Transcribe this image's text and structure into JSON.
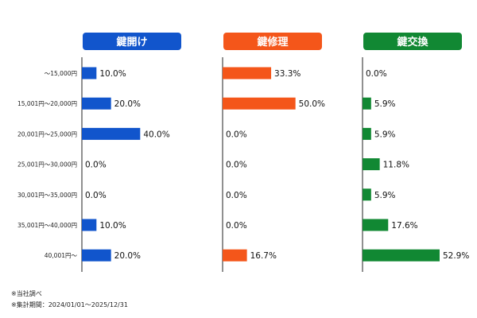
{
  "chart_data": {
    "type": "bar",
    "orientation": "horizontal",
    "categories": [
      "〜15,000円",
      "15,001円〜20,000円",
      "20,001円〜25,000円",
      "25,001円〜30,000円",
      "30,001円〜35,000円",
      "35,001円〜40,000円",
      "40,001円〜"
    ],
    "xlim": [
      0,
      60
    ],
    "grid": false,
    "legend": "none",
    "series": [
      {
        "name": "鍵開け",
        "color": "#1155cc",
        "values": [
          10.0,
          20.0,
          40.0,
          0.0,
          0.0,
          10.0,
          20.0
        ],
        "labels": [
          "10.0%",
          "20.0%",
          "40.0%",
          "0.0%",
          "0.0%",
          "10.0%",
          "20.0%"
        ]
      },
      {
        "name": "鍵修理",
        "color": "#f4561a",
        "values": [
          33.3,
          50.0,
          0.0,
          0.0,
          0.0,
          0.0,
          16.7
        ],
        "labels": [
          "33.3%",
          "50.0%",
          "0.0%",
          "0.0%",
          "0.0%",
          "0.0%",
          "16.7%"
        ]
      },
      {
        "name": "鍵交換",
        "color": "#118833",
        "values": [
          0.0,
          5.9,
          5.9,
          11.8,
          5.9,
          17.6,
          52.9
        ],
        "labels": [
          "0.0%",
          "5.9%",
          "5.9%",
          "11.8%",
          "5.9%",
          "17.6%",
          "52.9%"
        ]
      }
    ]
  },
  "notes": [
    "※当社調べ",
    "※集計期間：2024/01/01〜2025/12/31"
  ]
}
